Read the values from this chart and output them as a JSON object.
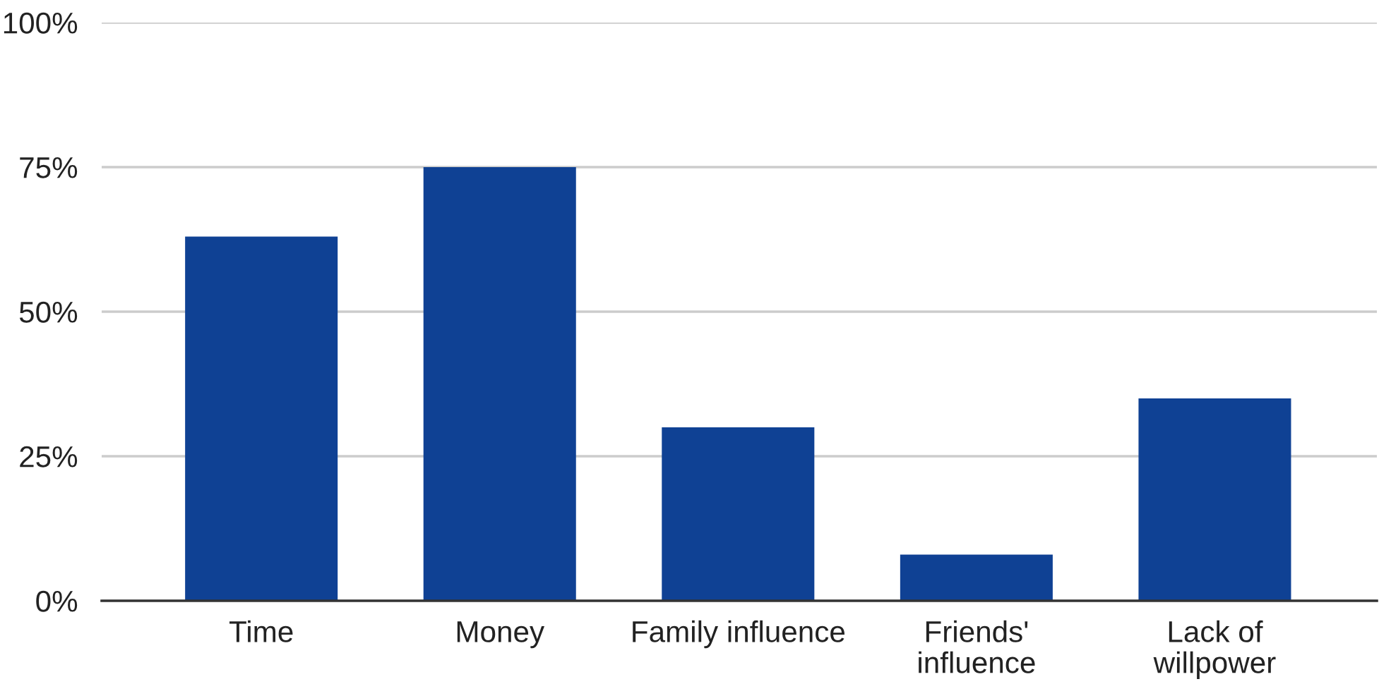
{
  "chart_data": {
    "type": "bar",
    "categories": [
      "Time",
      "Money",
      "Family influence",
      "Friends' influence",
      "Lack of willpower"
    ],
    "values": [
      63,
      75,
      30,
      8,
      35
    ],
    "color": "#0f4194",
    "ylim": [
      0,
      100
    ],
    "yticks": [
      {
        "value": 0,
        "label": "0%"
      },
      {
        "value": 25,
        "label": "25%"
      },
      {
        "value": 50,
        "label": "50%"
      },
      {
        "value": 75,
        "label": "75%"
      },
      {
        "value": 100,
        "label": "100%"
      }
    ],
    "grid": "y"
  }
}
